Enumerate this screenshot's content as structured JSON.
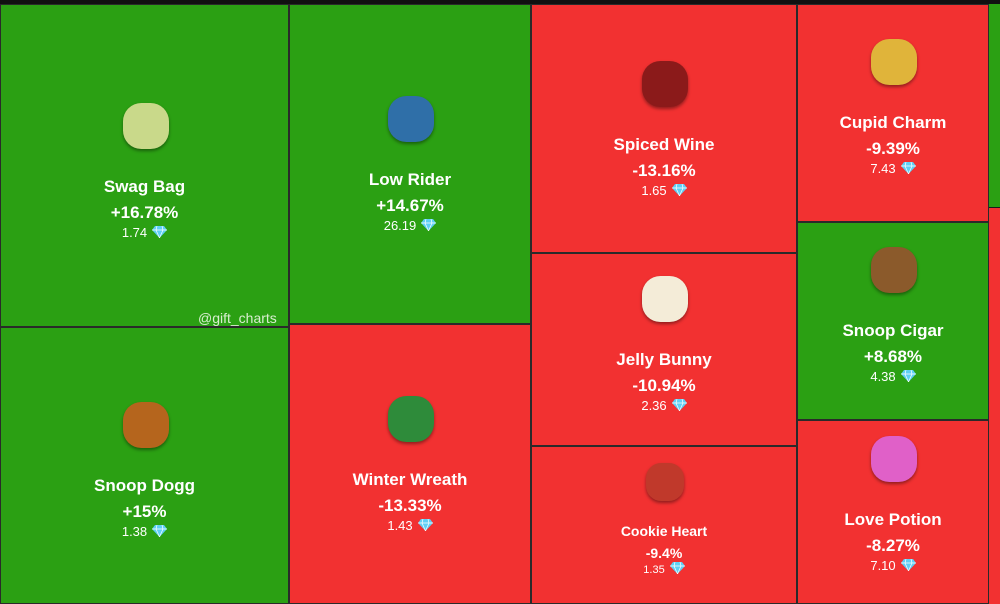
{
  "tiles": [
    {
      "name": "Swag Bag",
      "change": "+16.78%",
      "price": "1.74",
      "color": "#2ba013"
    },
    {
      "name": "Low Rider",
      "change": "+14.67%",
      "price": "26.19",
      "color": "#2ba013"
    },
    {
      "name": "Snoop Dogg",
      "change": "+15%",
      "price": "1.38",
      "color": "#2ba013"
    },
    {
      "name": "Winter Wreath",
      "change": "-13.33%",
      "price": "1.43",
      "color": "#f23131"
    },
    {
      "name": "Spiced Wine",
      "change": "-13.16%",
      "price": "1.65",
      "color": "#f23131"
    },
    {
      "name": "Jelly Bunny",
      "change": "-10.94%",
      "price": "2.36",
      "color": "#f23131"
    },
    {
      "name": "Cookie Heart",
      "change": "-9.4%",
      "price": "1.35",
      "color": "#f23131"
    },
    {
      "name": "Cupid Charm",
      "change": "-9.39%",
      "price": "7.43",
      "color": "#f23131"
    },
    {
      "name": "Snoop Cigar",
      "change": "+8.68%",
      "price": "4.38",
      "color": "#2ba013"
    },
    {
      "name": "Love Potion",
      "change": "-8.27%",
      "price": "7.10",
      "color": "#f23131"
    }
  ],
  "watermark": "@gift_charts"
}
